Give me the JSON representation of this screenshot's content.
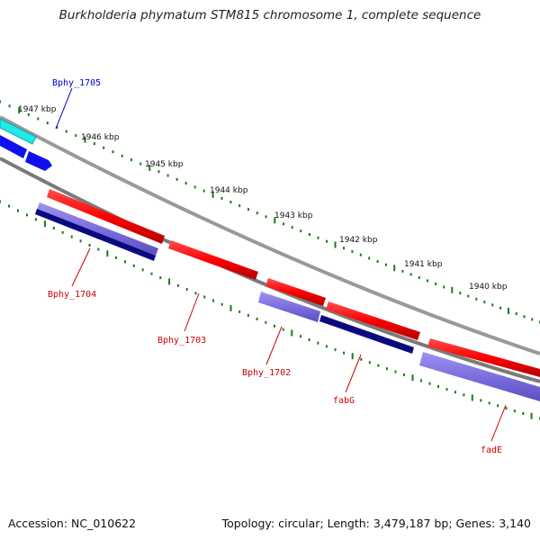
{
  "title": "Burkholderia phymatum STM815 chromosome 1, complete sequence",
  "footer": {
    "accession": "Accession: NC_010622",
    "topology": "Topology: circular; Length: 3,479,187 bp; Genes: 3,140"
  },
  "ticks": [
    "1947 kbp",
    "1946 kbp",
    "1945 kbp",
    "1944 kbp",
    "1943 kbp",
    "1942 kbp",
    "1941 kbp",
    "1940 kbp"
  ],
  "genes": [
    {
      "name": "Bphy_1705",
      "color": "#0000cc"
    },
    {
      "name": "Bphy_1704",
      "color": "#cc0000"
    },
    {
      "name": "Bphy_1703",
      "color": "#cc0000"
    },
    {
      "name": "Bphy_1702",
      "color": "#cc0000"
    },
    {
      "name": "fabG",
      "color": "#cc0000"
    },
    {
      "name": "fadE",
      "color": "#cc0000"
    }
  ],
  "colors": {
    "backbone": "#888888",
    "tick": "#1a7a1a",
    "forward_gene": "#ff0000",
    "reverse_gene": "#7b6ee0",
    "dark_gene": "#0a0a80",
    "cyan_gene": "#22e8e8",
    "blue_gene": "#1010ee"
  }
}
